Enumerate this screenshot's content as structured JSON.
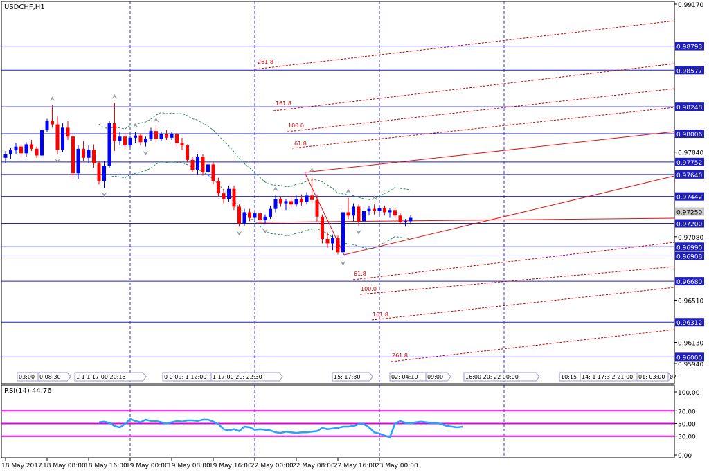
{
  "window": {
    "symbol_title": "USDCHF,H1",
    "rsi_title": "RSI(14) 44.76"
  },
  "colors": {
    "bull": "#0000ff",
    "bear": "#ff0000",
    "grid_dashed": "#3333cc",
    "hline": "#1f1fbf",
    "channel_solid": "#e01010",
    "channel_dashed": "#cc0000",
    "band": "#2e8b57",
    "rsi_line": "#2aa0ff",
    "rsi_levels": "#e000e0",
    "price_tag_bg": "#1f1fbf",
    "price_tag_fg": "#ffffff"
  },
  "chart_data": {
    "type": "candlestick",
    "price_axis": {
      "ylim": [
        0.9594,
        0.9917
      ],
      "ticks": [
        "0.99170",
        "0.97840",
        "0.97080",
        "0.96510",
        "0.96130",
        "0.95940"
      ],
      "hline_tags": [
        {
          "label": "0.98793",
          "value": 0.98793
        },
        {
          "label": "0.98577",
          "value": 0.98577
        },
        {
          "label": "0.98248",
          "value": 0.98248
        },
        {
          "label": "0.98006",
          "value": 0.98006
        },
        {
          "label": "0.97752",
          "value": 0.97752
        },
        {
          "label": "0.97640",
          "value": 0.9764
        },
        {
          "label": "0.97442",
          "value": 0.97442
        },
        {
          "label": "0.97200",
          "value": 0.972
        },
        {
          "label": "0.96990",
          "value": 0.9699
        },
        {
          "label": "0.96908",
          "value": 0.96908
        },
        {
          "label": "0.96680",
          "value": 0.9668
        },
        {
          "label": "0.96312",
          "value": 0.96312
        },
        {
          "label": "0.96000",
          "value": 0.96
        }
      ],
      "bid_tag": {
        "label": "0.97250",
        "value": 0.9725
      }
    },
    "time_axis": [
      {
        "label": "18 May 2017",
        "slot": 0
      },
      {
        "label": "18 May 08:00",
        "slot": 8
      },
      {
        "label": "18 May 16:00",
        "slot": 16
      },
      {
        "label": "19 May 00:00",
        "slot": 24
      },
      {
        "label": "19 May 08:00",
        "slot": 32
      },
      {
        "label": "19 May 16:00",
        "slot": 40
      },
      {
        "label": "22 May 00:00",
        "slot": 48
      },
      {
        "label": "22 May 08:00",
        "slot": 56
      },
      {
        "label": "22 May 16:00",
        "slot": 64
      },
      {
        "label": "23 May 00:00",
        "slot": 72
      }
    ],
    "day_separator_slots": [
      24,
      48,
      72,
      96
    ],
    "session_labels": [
      "03:00",
      "0 08:30",
      "1 1 1 17:00 20:15",
      "0 0 09: 1 12:00",
      "1 17:00 20: 22:30",
      "15: 17:30",
      "02: 04:10",
      "09:00",
      "16:00 20: 22 00:00",
      "10:15",
      "14: 1 17:3 2 21:00",
      "01: 03:00",
      "07"
    ],
    "candles": [
      {
        "o": 0.9779,
        "h": 0.9785,
        "l": 0.9774,
        "c": 0.9782
      },
      {
        "o": 0.9782,
        "h": 0.9788,
        "l": 0.9778,
        "c": 0.9786
      },
      {
        "o": 0.9786,
        "h": 0.9792,
        "l": 0.9782,
        "c": 0.9789
      },
      {
        "o": 0.9789,
        "h": 0.9791,
        "l": 0.978,
        "c": 0.9783
      },
      {
        "o": 0.9783,
        "h": 0.9793,
        "l": 0.978,
        "c": 0.9791
      },
      {
        "o": 0.9791,
        "h": 0.9795,
        "l": 0.9785,
        "c": 0.9787
      },
      {
        "o": 0.9787,
        "h": 0.9789,
        "l": 0.9779,
        "c": 0.9781
      },
      {
        "o": 0.9781,
        "h": 0.9806,
        "l": 0.9779,
        "c": 0.9804
      },
      {
        "o": 0.9804,
        "h": 0.9814,
        "l": 0.9802,
        "c": 0.9812
      },
      {
        "o": 0.9812,
        "h": 0.9826,
        "l": 0.9806,
        "c": 0.9809
      },
      {
        "o": 0.9809,
        "h": 0.9816,
        "l": 0.9782,
        "c": 0.9786
      },
      {
        "o": 0.9786,
        "h": 0.981,
        "l": 0.9784,
        "c": 0.9806
      },
      {
        "o": 0.9806,
        "h": 0.9812,
        "l": 0.9795,
        "c": 0.9798
      },
      {
        "o": 0.9798,
        "h": 0.98,
        "l": 0.976,
        "c": 0.9765
      },
      {
        "o": 0.9765,
        "h": 0.979,
        "l": 0.976,
        "c": 0.9787
      },
      {
        "o": 0.9787,
        "h": 0.9794,
        "l": 0.9776,
        "c": 0.9779
      },
      {
        "o": 0.9779,
        "h": 0.979,
        "l": 0.9774,
        "c": 0.9786
      },
      {
        "o": 0.9786,
        "h": 0.9791,
        "l": 0.977,
        "c": 0.9774
      },
      {
        "o": 0.9774,
        "h": 0.9776,
        "l": 0.9755,
        "c": 0.9758
      },
      {
        "o": 0.9758,
        "h": 0.9776,
        "l": 0.9752,
        "c": 0.9772
      },
      {
        "o": 0.9772,
        "h": 0.9812,
        "l": 0.977,
        "c": 0.981
      },
      {
        "o": 0.981,
        "h": 0.9828,
        "l": 0.9785,
        "c": 0.9794
      },
      {
        "o": 0.9794,
        "h": 0.9802,
        "l": 0.979,
        "c": 0.9798
      },
      {
        "o": 0.9798,
        "h": 0.9801,
        "l": 0.9787,
        "c": 0.979
      },
      {
        "o": 0.979,
        "h": 0.9799,
        "l": 0.9788,
        "c": 0.9797
      },
      {
        "o": 0.9797,
        "h": 0.9802,
        "l": 0.9792,
        "c": 0.9799
      },
      {
        "o": 0.9799,
        "h": 0.9801,
        "l": 0.979,
        "c": 0.9793
      },
      {
        "o": 0.9793,
        "h": 0.9798,
        "l": 0.9789,
        "c": 0.9796
      },
      {
        "o": 0.9796,
        "h": 0.9806,
        "l": 0.9794,
        "c": 0.9803
      },
      {
        "o": 0.9803,
        "h": 0.9807,
        "l": 0.9793,
        "c": 0.9796
      },
      {
        "o": 0.9796,
        "h": 0.9802,
        "l": 0.9794,
        "c": 0.98
      },
      {
        "o": 0.98,
        "h": 0.9804,
        "l": 0.9795,
        "c": 0.9797
      },
      {
        "o": 0.9797,
        "h": 0.9802,
        "l": 0.9795,
        "c": 0.98
      },
      {
        "o": 0.98,
        "h": 0.9801,
        "l": 0.9789,
        "c": 0.9792
      },
      {
        "o": 0.9792,
        "h": 0.9797,
        "l": 0.9786,
        "c": 0.979
      },
      {
        "o": 0.979,
        "h": 0.9791,
        "l": 0.9775,
        "c": 0.9777
      },
      {
        "o": 0.9777,
        "h": 0.978,
        "l": 0.9766,
        "c": 0.9768
      },
      {
        "o": 0.9768,
        "h": 0.9782,
        "l": 0.9764,
        "c": 0.978
      },
      {
        "o": 0.978,
        "h": 0.9782,
        "l": 0.9763,
        "c": 0.9766
      },
      {
        "o": 0.9766,
        "h": 0.9775,
        "l": 0.976,
        "c": 0.9773
      },
      {
        "o": 0.9773,
        "h": 0.9775,
        "l": 0.9755,
        "c": 0.9758
      },
      {
        "o": 0.9758,
        "h": 0.9761,
        "l": 0.9744,
        "c": 0.9747
      },
      {
        "o": 0.9747,
        "h": 0.975,
        "l": 0.9738,
        "c": 0.9742
      },
      {
        "o": 0.9742,
        "h": 0.9754,
        "l": 0.9739,
        "c": 0.9751
      },
      {
        "o": 0.9751,
        "h": 0.9754,
        "l": 0.9732,
        "c": 0.9735
      },
      {
        "o": 0.9735,
        "h": 0.9737,
        "l": 0.9717,
        "c": 0.972
      },
      {
        "o": 0.972,
        "h": 0.9733,
        "l": 0.9718,
        "c": 0.973
      },
      {
        "o": 0.973,
        "h": 0.9733,
        "l": 0.9722,
        "c": 0.9725
      },
      {
        "o": 0.9725,
        "h": 0.9731,
        "l": 0.9721,
        "c": 0.9729
      },
      {
        "o": 0.9729,
        "h": 0.973,
        "l": 0.972,
        "c": 0.9723
      },
      {
        "o": 0.9723,
        "h": 0.9728,
        "l": 0.9719,
        "c": 0.9726
      },
      {
        "o": 0.9726,
        "h": 0.9736,
        "l": 0.9724,
        "c": 0.9733
      },
      {
        "o": 0.9733,
        "h": 0.9745,
        "l": 0.973,
        "c": 0.9742
      },
      {
        "o": 0.9742,
        "h": 0.9744,
        "l": 0.9735,
        "c": 0.9738
      },
      {
        "o": 0.9738,
        "h": 0.9742,
        "l": 0.9732,
        "c": 0.974
      },
      {
        "o": 0.974,
        "h": 0.9744,
        "l": 0.9734,
        "c": 0.9737
      },
      {
        "o": 0.9737,
        "h": 0.9745,
        "l": 0.9735,
        "c": 0.9742
      },
      {
        "o": 0.9742,
        "h": 0.9746,
        "l": 0.9736,
        "c": 0.9739
      },
      {
        "o": 0.9739,
        "h": 0.9748,
        "l": 0.9737,
        "c": 0.9745
      },
      {
        "o": 0.9745,
        "h": 0.9762,
        "l": 0.9738,
        "c": 0.9741
      },
      {
        "o": 0.9741,
        "h": 0.9746,
        "l": 0.9722,
        "c": 0.9726
      },
      {
        "o": 0.9726,
        "h": 0.9728,
        "l": 0.9702,
        "c": 0.9706
      },
      {
        "o": 0.9706,
        "h": 0.9712,
        "l": 0.9698,
        "c": 0.9702
      },
      {
        "o": 0.9702,
        "h": 0.971,
        "l": 0.9696,
        "c": 0.9707
      },
      {
        "o": 0.9707,
        "h": 0.9709,
        "l": 0.9692,
        "c": 0.9694
      },
      {
        "o": 0.9694,
        "h": 0.9732,
        "l": 0.969,
        "c": 0.973
      },
      {
        "o": 0.973,
        "h": 0.9743,
        "l": 0.9724,
        "c": 0.9727
      },
      {
        "o": 0.9727,
        "h": 0.9738,
        "l": 0.9722,
        "c": 0.9735
      },
      {
        "o": 0.9735,
        "h": 0.9737,
        "l": 0.9718,
        "c": 0.9722
      },
      {
        "o": 0.9722,
        "h": 0.9734,
        "l": 0.972,
        "c": 0.9731
      },
      {
        "o": 0.9731,
        "h": 0.9736,
        "l": 0.9727,
        "c": 0.9733
      },
      {
        "o": 0.9733,
        "h": 0.9737,
        "l": 0.9728,
        "c": 0.9731
      },
      {
        "o": 0.9731,
        "h": 0.9736,
        "l": 0.9727,
        "c": 0.9734
      },
      {
        "o": 0.9734,
        "h": 0.9736,
        "l": 0.9727,
        "c": 0.973
      },
      {
        "o": 0.973,
        "h": 0.9734,
        "l": 0.9725,
        "c": 0.9732
      },
      {
        "o": 0.9732,
        "h": 0.9734,
        "l": 0.9723,
        "c": 0.9727
      },
      {
        "o": 0.9727,
        "h": 0.9729,
        "l": 0.9719,
        "c": 0.9721
      },
      {
        "o": 0.9721,
        "h": 0.9724,
        "l": 0.9717,
        "c": 0.9722
      },
      {
        "o": 0.9722,
        "h": 0.9727,
        "l": 0.972,
        "c": 0.9725
      }
    ],
    "fibo_levels": {
      "upper": [
        "261.8",
        "161.8",
        "100.0",
        "61.8"
      ],
      "lower": [
        "61.8",
        "100.0",
        "161.8",
        "261.8"
      ]
    },
    "rsi": {
      "name": "RSI(14)",
      "ylim": [
        0,
        100
      ],
      "levels": [
        70,
        50,
        30
      ],
      "ticks": [
        "100.00",
        "70.00",
        "50.00",
        "30.00",
        "0.00"
      ],
      "start_slot": 18,
      "values": [
        52,
        53,
        51,
        46,
        44,
        49,
        57,
        54,
        52,
        56,
        54,
        54,
        52,
        50,
        52,
        54,
        53,
        55,
        55,
        54,
        56,
        56,
        53,
        49,
        41,
        39,
        41,
        38,
        45,
        44,
        40,
        41,
        40,
        39,
        36,
        35,
        37,
        36,
        35,
        36,
        36,
        37,
        38,
        43,
        41,
        42,
        43,
        45,
        45,
        46,
        49,
        49,
        44,
        36,
        34,
        31,
        28,
        50,
        54,
        51,
        50,
        52,
        53,
        52,
        51,
        51,
        49,
        46,
        45,
        44,
        45
      ]
    }
  }
}
